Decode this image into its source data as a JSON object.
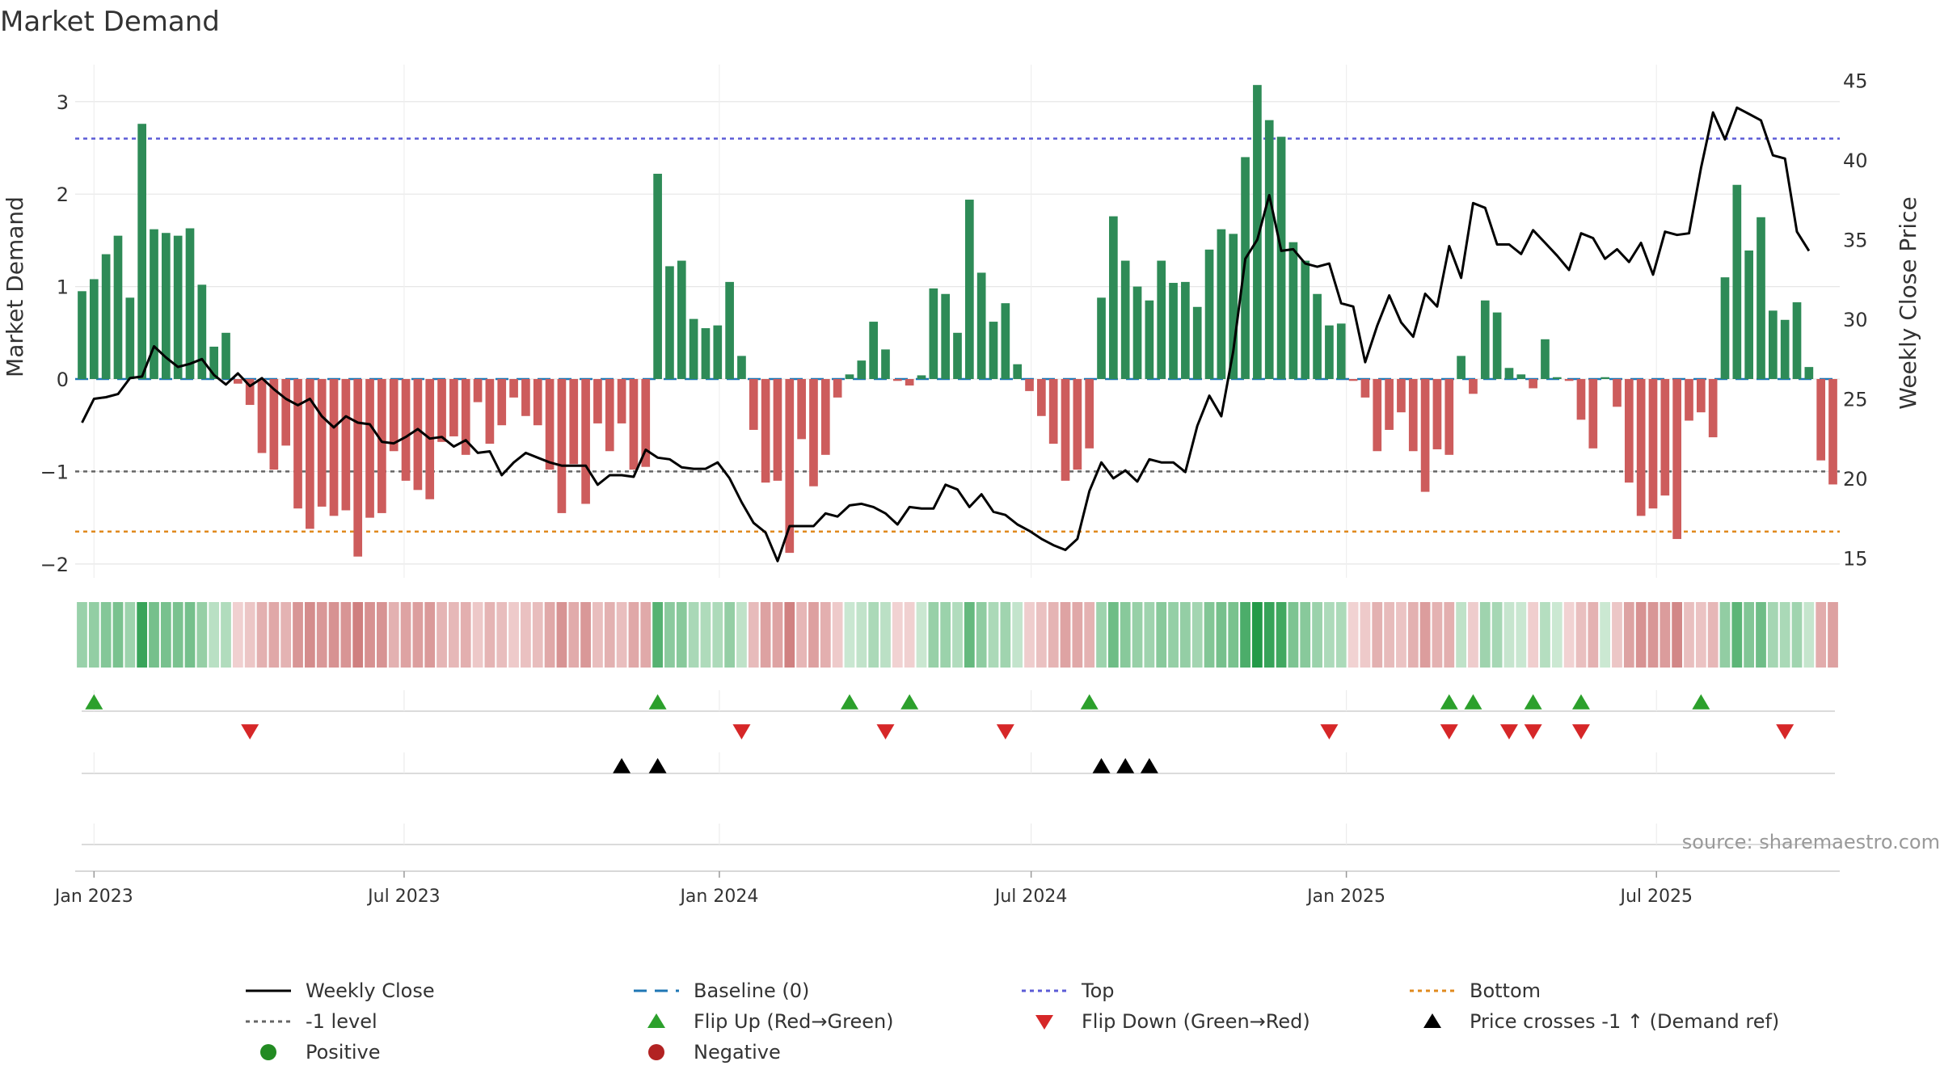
{
  "chart_data": {
    "type": "bar",
    "title": "Market Demand",
    "ylabel": "Market Demand",
    "y2label": "Weekly Close Price",
    "ylim": [
      -2.15,
      3.4
    ],
    "y2lim": [
      13.75,
      46.0
    ],
    "yticks": [
      -2,
      -1,
      0,
      1,
      2,
      3
    ],
    "y2ticks": [
      15,
      20,
      25,
      30,
      35,
      40,
      45
    ],
    "x_start": "2022-12-25",
    "x_step_days": 7,
    "xticks": [
      {
        "label": "Jan 2023",
        "date": "2023-01-01"
      },
      {
        "label": "Jul 2023",
        "date": "2023-07-01"
      },
      {
        "label": "Jan 2024",
        "date": "2024-01-01"
      },
      {
        "label": "Jul 2024",
        "date": "2024-07-01"
      },
      {
        "label": "Jan 2025",
        "date": "2025-01-01"
      },
      {
        "label": "Jul 2025",
        "date": "2025-07-01"
      }
    ],
    "levels": {
      "top": 2.6,
      "minus_one": -1.0,
      "bottom": -1.65,
      "baseline": 0
    },
    "demand": [
      0.95,
      1.08,
      1.35,
      1.55,
      0.88,
      2.76,
      1.62,
      1.58,
      1.55,
      1.63,
      1.02,
      0.35,
      0.5,
      -0.05,
      -0.28,
      -0.8,
      -0.98,
      -0.72,
      -1.4,
      -1.62,
      -1.38,
      -1.48,
      -1.42,
      -1.92,
      -1.5,
      -1.45,
      -0.78,
      -1.1,
      -1.2,
      -1.3,
      -0.68,
      -0.62,
      -0.82,
      -0.25,
      -0.7,
      -0.5,
      -0.2,
      -0.4,
      -0.5,
      -0.98,
      -1.45,
      -0.92,
      -1.35,
      -0.48,
      -0.78,
      -0.48,
      -0.98,
      -0.95,
      2.22,
      1.22,
      1.28,
      0.65,
      0.55,
      0.58,
      1.05,
      0.25,
      -0.55,
      -1.12,
      -1.1,
      -1.88,
      -0.65,
      -1.16,
      -0.82,
      -0.2,
      0.05,
      0.2,
      0.62,
      0.32,
      -0.02,
      -0.07,
      0.04,
      0.98,
      0.92,
      0.5,
      1.94,
      1.15,
      0.62,
      0.82,
      0.16,
      -0.13,
      -0.4,
      -0.7,
      -1.1,
      -0.98,
      -0.75,
      0.88,
      1.76,
      1.28,
      1.0,
      0.85,
      1.28,
      1.04,
      1.05,
      0.78,
      1.4,
      1.62,
      1.57,
      2.4,
      3.18,
      2.8,
      2.62,
      1.48,
      1.28,
      0.92,
      0.58,
      0.6,
      -0.02,
      -0.2,
      -0.78,
      -0.55,
      -0.36,
      -0.78,
      -1.22,
      -0.76,
      -0.82,
      0.25,
      -0.16,
      0.85,
      0.72,
      0.12,
      0.05,
      -0.1,
      0.43,
      0.02,
      -0.02,
      -0.44,
      -0.75,
      0.02,
      -0.3,
      -1.12,
      -1.48,
      -1.4,
      -1.26,
      -1.73,
      -0.45,
      -0.36,
      -0.63,
      1.1,
      2.1,
      1.39,
      1.75,
      0.74,
      0.64,
      0.83,
      0.13,
      -0.88,
      -1.14
    ],
    "price": [
      23.5,
      25.0,
      25.1,
      25.3,
      26.3,
      26.4,
      28.3,
      27.6,
      27.0,
      27.2,
      27.5,
      26.5,
      25.9,
      26.6,
      25.8,
      26.3,
      25.6,
      25.0,
      24.6,
      25.0,
      23.9,
      23.2,
      23.9,
      23.5,
      23.4,
      22.3,
      22.2,
      22.6,
      23.1,
      22.5,
      22.6,
      22.0,
      22.4,
      21.6,
      21.7,
      20.2,
      21.0,
      21.6,
      21.3,
      21.0,
      20.8,
      20.8,
      20.8,
      19.6,
      20.2,
      20.2,
      20.1,
      21.8,
      21.3,
      21.2,
      20.7,
      20.6,
      20.6,
      21.0,
      20.0,
      18.5,
      17.2,
      16.6,
      14.8,
      17.0,
      17.0,
      17.0,
      17.8,
      17.6,
      18.3,
      18.4,
      18.2,
      17.8,
      17.1,
      18.2,
      18.1,
      18.1,
      19.6,
      19.3,
      18.2,
      19.0,
      17.9,
      17.7,
      17.1,
      16.7,
      16.2,
      15.8,
      15.5,
      16.2,
      19.2,
      21.0,
      20.0,
      20.5,
      19.8,
      21.2,
      21.0,
      21.0,
      20.4,
      23.3,
      25.2,
      23.9,
      28.0,
      33.8,
      35.0,
      37.8,
      34.3,
      34.4,
      33.5,
      33.3,
      33.5,
      31.0,
      30.8,
      27.3,
      29.6,
      31.5,
      29.8,
      28.9,
      31.6,
      30.8,
      34.6,
      32.6,
      37.3,
      37.0,
      34.7,
      34.7,
      34.1,
      35.6,
      34.8,
      34.0,
      33.1,
      35.4,
      35.1,
      33.8,
      34.4,
      33.6,
      34.8,
      32.8,
      35.5,
      35.3,
      35.4,
      39.5,
      43.0,
      41.3,
      43.3,
      42.9,
      42.5,
      40.3,
      40.1,
      35.5,
      34.3
    ],
    "flip_up_weeks": [
      1,
      48,
      64,
      69,
      84,
      114,
      116,
      121,
      125,
      135
    ],
    "flip_down_weeks": [
      14,
      55,
      67,
      77,
      104,
      114,
      119,
      121,
      125,
      142
    ],
    "price_cross_weeks": [
      45,
      48,
      85,
      87,
      89
    ],
    "source": "source: sharemaestro.com",
    "legend": [
      {
        "key": "weekly_close",
        "label": "Weekly Close"
      },
      {
        "key": "baseline",
        "label": "Baseline (0)"
      },
      {
        "key": "top",
        "label": "Top"
      },
      {
        "key": "bottom",
        "label": "Bottom"
      },
      {
        "key": "minus_one",
        "label": "-1 level"
      },
      {
        "key": "flip_up",
        "label": "Flip Up (Red→Green)"
      },
      {
        "key": "flip_down",
        "label": "Flip Down (Green→Red)"
      },
      {
        "key": "price_cross",
        "label": "Price crosses -1 ↑ (Demand ref)"
      },
      {
        "key": "positive",
        "label": "Positive"
      },
      {
        "key": "negative",
        "label": "Negative"
      }
    ],
    "colors": {
      "positive": "#2e8b57",
      "negative": "#cd5c5c",
      "price": "#000000",
      "baseline": "#1f77b4",
      "top": "#5b5bd6",
      "bottom": "#e08a1e",
      "minus_one": "#666666",
      "flip_up": "#2ca02c",
      "flip_down": "#d62728",
      "price_cross": "#000000",
      "legend_positive": "#228b22",
      "legend_negative": "#b22222"
    }
  }
}
